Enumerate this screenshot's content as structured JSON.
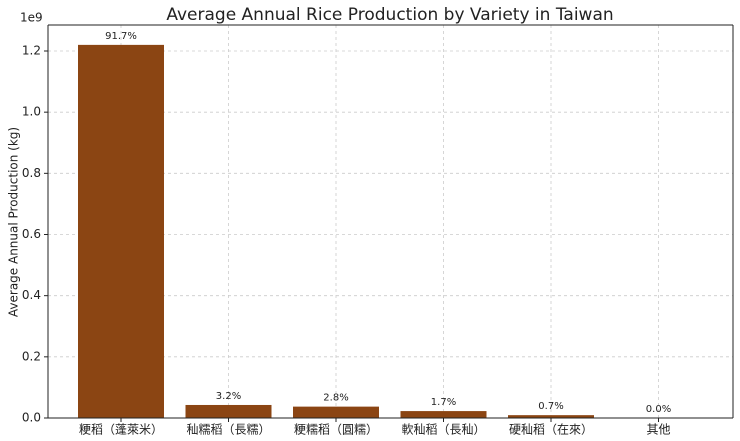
{
  "chart_data": {
    "type": "bar",
    "title": "Average Annual Rice Production by Variety in Taiwan",
    "y_label": "Average Annual Production (kg)",
    "y_offset_label": "1e9",
    "categories": [
      "粳稻（蓬萊米）",
      "秈糯稻（長糯）",
      "粳糯稻（圓糯）",
      "軟秈稻（長秈）",
      "硬秈稻（在來）",
      "其他"
    ],
    "values": [
      1.22,
      0.0426,
      0.0372,
      0.0226,
      0.0093,
      0.0003
    ],
    "shares": [
      91.7,
      3.2,
      2.8,
      1.7,
      0.7,
      0.0
    ],
    "share_labels": [
      "91.7%",
      "3.2%",
      "2.8%",
      "1.7%",
      "0.7%",
      "0.0%"
    ],
    "color": "#8b4513",
    "ylim": [
      0,
      1.285
    ],
    "yticks": [
      {
        "value": 0,
        "label": "0.0"
      },
      0.2,
      0.4,
      0.6,
      0.8,
      {
        "value": 1,
        "label": "1.0"
      },
      1.2
    ],
    "grid": true
  }
}
